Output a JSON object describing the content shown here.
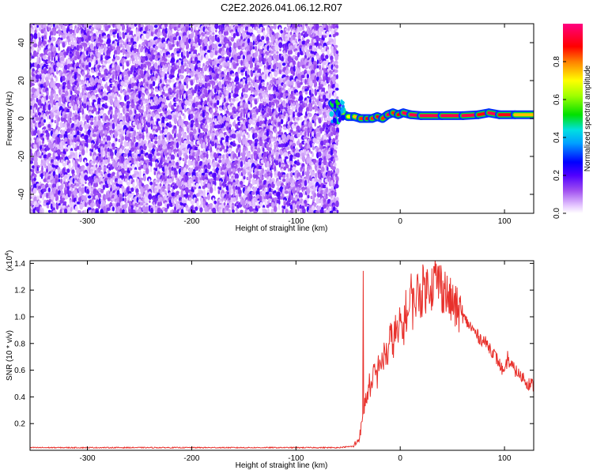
{
  "title": "C2E2.2026.041.06.12.R07",
  "chart_data": [
    {
      "type": "heatmap",
      "xlabel": "Height of straight line (km)",
      "ylabel": "Frequency (Hz)",
      "xlim": [
        -355,
        128
      ],
      "ylim": [
        -50,
        50
      ],
      "xticks": [
        -300,
        -200,
        -100,
        0,
        100
      ],
      "yticks": [
        -40,
        -20,
        0,
        20,
        40
      ],
      "noise_region_x": [
        -355,
        -60
      ],
      "signal_track": {
        "x": [
          -65,
          -58,
          -50,
          -44,
          -38,
          -32,
          -27,
          -22,
          -17,
          -12,
          -7,
          -2,
          3,
          10,
          20,
          40,
          60,
          75,
          85,
          95,
          110,
          128
        ],
        "freq": [
          8,
          3,
          1,
          1,
          0,
          0,
          0,
          1,
          0,
          2,
          3,
          2,
          3,
          2,
          1.5,
          1.5,
          1.5,
          2,
          3,
          2,
          2,
          2
        ],
        "amplitude": [
          0.5,
          0.6,
          0.7,
          0.75,
          0.85,
          0.9,
          0.85,
          0.9,
          0.85,
          0.95,
          0.85,
          0.9,
          0.95,
          0.95,
          0.95,
          0.95,
          0.95,
          0.9,
          0.95,
          0.9,
          0.75,
          0.6
        ]
      },
      "colorbar": {
        "label": "Normalized spectral amplitude",
        "range": [
          0,
          1
        ],
        "ticks": [
          "0.0",
          "0.2",
          "0.4",
          "0.6",
          "0.8"
        ]
      }
    },
    {
      "type": "line",
      "xlabel": "Height of straight line (km)",
      "ylabel": "SNR (10 * v/v)",
      "scale_label": "(x10",
      "scale_exp": "4",
      "xlim": [
        -355,
        128
      ],
      "ylim": [
        0,
        1.42
      ],
      "xticks": [
        -300,
        -200,
        -100,
        0,
        100
      ],
      "yticks": [
        "0.2",
        "0.4",
        "0.6",
        "0.8",
        "1.0",
        "1.2",
        "1.4"
      ],
      "series": [
        {
          "name": "SNR",
          "color": "#e8312c",
          "x": [
            -355,
            -200,
            -60,
            -45,
            -40,
            -38,
            -36,
            -35.5,
            -35,
            -34,
            -32,
            -30,
            -27,
            -25,
            -22,
            -20,
            -17,
            -15,
            -12,
            -10,
            -7,
            -5,
            -2,
            0,
            3,
            5,
            8,
            10,
            11,
            12,
            13,
            15,
            18,
            20,
            23,
            25,
            28,
            30,
            33,
            35,
            38,
            40,
            43,
            45,
            50,
            55,
            60,
            65,
            70,
            75,
            80,
            85,
            90,
            95,
            98,
            100,
            103,
            105,
            108,
            110,
            113,
            115,
            118,
            120,
            123,
            125,
            128
          ],
          "y": [
            0.02,
            0.02,
            0.02,
            0.03,
            0.08,
            0.15,
            0.22,
            1.42,
            0.3,
            0.35,
            0.4,
            0.5,
            0.45,
            0.6,
            0.55,
            0.7,
            0.62,
            0.75,
            0.7,
            0.85,
            0.8,
            0.9,
            0.85,
            0.95,
            0.9,
            1.05,
            1.0,
            1.1,
            1.38,
            1.05,
            1.1,
            1.15,
            1.2,
            1.15,
            1.25,
            1.2,
            1.28,
            1.22,
            1.3,
            1.25,
            1.28,
            1.2,
            1.22,
            1.15,
            1.1,
            1.05,
            1.0,
            0.95,
            0.9,
            0.85,
            0.82,
            0.78,
            0.72,
            0.65,
            0.6,
            0.55,
            0.7,
            0.65,
            0.62,
            0.6,
            0.58,
            0.55,
            0.55,
            0.52,
            0.5,
            0.5,
            0.48
          ]
        }
      ]
    }
  ]
}
